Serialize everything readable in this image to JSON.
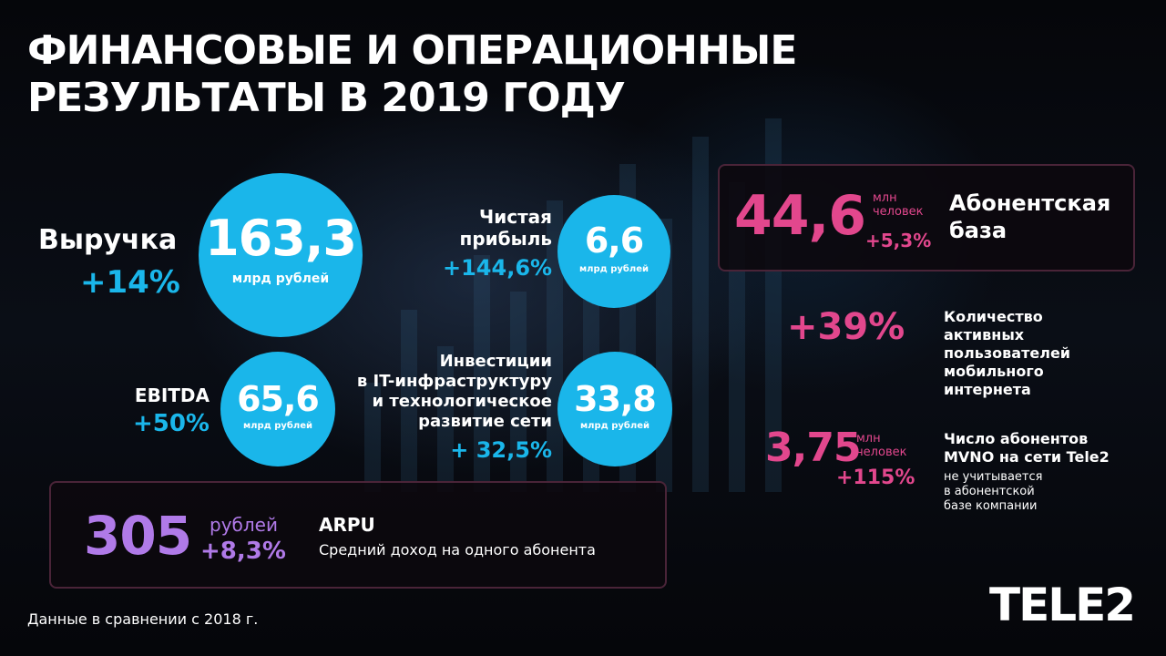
{
  "title": {
    "line1": "ФИНАНСОВЫЕ И ОПЕРАЦИОННЫЕ",
    "line2": "РЕЗУЛЬТАТЫ В 2019 ГОДУ"
  },
  "revenue": {
    "label": "Выручка",
    "change": "+14%",
    "value": "163,3",
    "unit": "млрд рублей"
  },
  "net_profit": {
    "label_line1": "Чистая",
    "label_line2": "прибыль",
    "change": "+144,6%",
    "value": "6,6",
    "unit": "млрд рублей"
  },
  "ebitda": {
    "label": "EBITDA",
    "change": "+50%",
    "value": "65,6",
    "unit": "млрд рублей"
  },
  "investments": {
    "label_line1": "Инвестиции",
    "label_line2": "в IT-инфраструктуру",
    "label_line3": "и технологическое",
    "label_line4": "развитие сети",
    "change": "+ 32,5%",
    "value": "33,8",
    "unit": "млрд рублей"
  },
  "arpu": {
    "value": "305",
    "unit": "рублей",
    "change": "+8,3%",
    "title": "ARPU",
    "description": "Средний доход на одного абонента"
  },
  "subscriber_base": {
    "value": "44,6",
    "unit_line1": "млн",
    "unit_line2": "человек",
    "change": "+5,3%",
    "label_line1": "Абонентская",
    "label_line2": "база"
  },
  "mobile_internet": {
    "change": "+39%",
    "label_line1": "Количество",
    "label_line2": "активных",
    "label_line3": "пользователей",
    "label_line4": "мобильного",
    "label_line5": "интернета"
  },
  "mvno": {
    "value": "3,75",
    "unit_line1": "млн",
    "unit_line2": "человек",
    "change": "+115%",
    "label_line1": "Число абонентов",
    "label_line2": "MVNO на сети Tele2",
    "note_line1": "не учитывается",
    "note_line2": "в абонентской",
    "note_line3": "базе компании"
  },
  "footnote": "Данные в сравнении с 2018 г.",
  "logo": {
    "text": "TELE2"
  },
  "colors": {
    "blue": "#1ab6ea",
    "pink": "#e2478d",
    "purple": "#b07ae8",
    "background": "#07080c"
  }
}
